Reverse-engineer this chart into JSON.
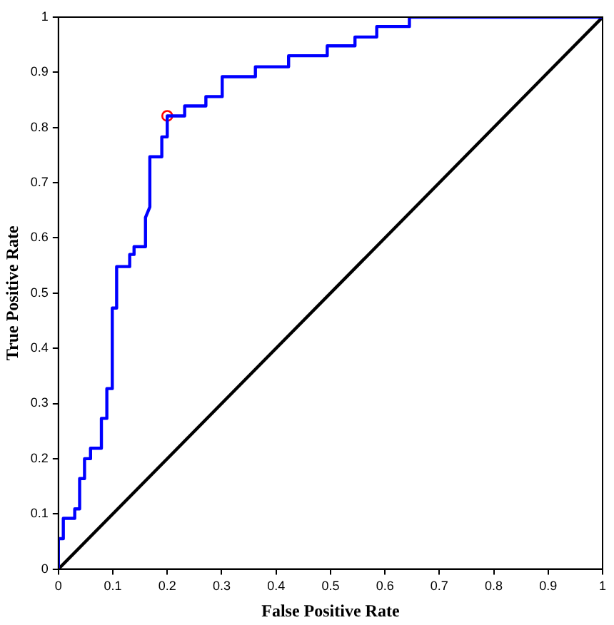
{
  "chart_data": {
    "type": "line",
    "xlabel": "False Positive Rate",
    "ylabel": "True Positive Rate",
    "xlim": [
      0,
      1
    ],
    "ylim": [
      0,
      1
    ],
    "xticks": [
      0,
      0.1,
      0.2,
      0.3,
      0.4,
      0.5,
      0.6,
      0.7,
      0.8,
      0.9,
      1
    ],
    "yticks": [
      0,
      0.1,
      0.2,
      0.3,
      0.4,
      0.5,
      0.6,
      0.7,
      0.8,
      0.9,
      1
    ],
    "grid": false,
    "legend": false,
    "series": [
      {
        "color": "#0000ff",
        "marker": "none",
        "line_style": "solid",
        "x": [
          0,
          0,
          0.009,
          0.009,
          0.03,
          0.03,
          0.039,
          0.039,
          0.048,
          0.048,
          0.059,
          0.059,
          0.079,
          0.079,
          0.089,
          0.089,
          0.099,
          0.099,
          0.107,
          0.107,
          0.131,
          0.131,
          0.139,
          0.139,
          0.16,
          0.16,
          0.168,
          0.168,
          0.19,
          0.19,
          0.2,
          0.2,
          0.232,
          0.232,
          0.271,
          0.271,
          0.301,
          0.301,
          0.362,
          0.362,
          0.423,
          0.423,
          0.494,
          0.494,
          0.545,
          0.545,
          0.585,
          0.585,
          0.645,
          0.645,
          1
        ],
        "values": [
          0,
          0.055,
          0.055,
          0.092,
          0.092,
          0.109,
          0.109,
          0.164,
          0.164,
          0.2,
          0.2,
          0.219,
          0.219,
          0.273,
          0.273,
          0.327,
          0.327,
          0.473,
          0.473,
          0.548,
          0.548,
          0.57,
          0.57,
          0.584,
          0.584,
          0.637,
          0.656,
          0.747,
          0.747,
          0.783,
          0.783,
          0.821,
          0.821,
          0.839,
          0.839,
          0.856,
          0.856,
          0.892,
          0.892,
          0.91,
          0.91,
          0.93,
          0.93,
          0.948,
          0.948,
          0.964,
          0.964,
          0.983,
          0.983,
          1,
          1
        ]
      },
      {
        "color": "#000000",
        "marker": "none",
        "line_style": "solid",
        "x": [
          0,
          1
        ],
        "values": [
          0,
          1
        ]
      },
      {
        "type": "scatter",
        "color": "#ff0000",
        "marker": "circle",
        "x": [
          0.2
        ],
        "values": [
          0.821
        ]
      }
    ]
  }
}
